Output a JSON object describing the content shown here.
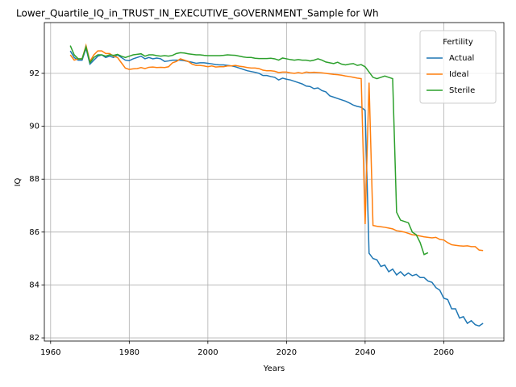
{
  "chart_data": {
    "type": "line",
    "title": "Lower_Quartile_IQ_in_TRUST_IN_EXECUTIVE_GOVERNMENT_Sample for Wh",
    "xlabel": "Years",
    "ylabel": "IQ",
    "legend_title": "Fertility",
    "legend": "upper right",
    "xlim": [
      1958.4,
      2075.3
    ],
    "ylim": [
      81.88,
      93.92
    ],
    "xticks": [
      1960,
      1980,
      2000,
      2020,
      2040,
      2060
    ],
    "yticks": [
      82,
      84,
      86,
      88,
      90,
      92
    ],
    "grid": true,
    "x": [
      1965,
      1966,
      1967,
      1968,
      1969,
      1970,
      1971,
      1972,
      1973,
      1974,
      1975,
      1976,
      1977,
      1978,
      1979,
      1980,
      1981,
      1982,
      1983,
      1984,
      1985,
      1986,
      1987,
      1988,
      1989,
      1990,
      1991,
      1992,
      1993,
      1994,
      1995,
      1996,
      1997,
      1998,
      1999,
      2000,
      2001,
      2002,
      2003,
      2004,
      2005,
      2006,
      2007,
      2008,
      2009,
      2010,
      2011,
      2012,
      2013,
      2014,
      2015,
      2016,
      2017,
      2018,
      2019,
      2020,
      2021,
      2022,
      2023,
      2024,
      2025,
      2026,
      2027,
      2028,
      2029,
      2030,
      2031,
      2032,
      2033,
      2034,
      2035,
      2036,
      2037,
      2038,
      2039,
      2040,
      2041,
      2042,
      2043,
      2044,
      2045,
      2046,
      2047,
      2048,
      2049,
      2050,
      2051,
      2052,
      2053,
      2054,
      2055,
      2056,
      2057,
      2058,
      2059,
      2060,
      2061,
      2062,
      2063,
      2064,
      2065,
      2066,
      2067,
      2068,
      2069,
      2070
    ],
    "series": [
      {
        "name": "Actual",
        "color": "#1f77b4",
        "values": [
          92.85,
          92.6,
          92.5,
          92.5,
          92.95,
          92.35,
          92.5,
          92.65,
          92.7,
          92.6,
          92.65,
          92.6,
          92.7,
          92.6,
          92.5,
          92.48,
          92.55,
          92.6,
          92.65,
          92.55,
          92.6,
          92.55,
          92.58,
          92.55,
          92.45,
          92.47,
          92.5,
          92.5,
          92.5,
          92.48,
          92.45,
          92.42,
          92.38,
          92.4,
          92.4,
          92.38,
          92.36,
          92.33,
          92.32,
          92.32,
          92.3,
          92.28,
          92.25,
          92.2,
          92.15,
          92.1,
          92.07,
          92.04,
          92.0,
          91.92,
          91.92,
          91.88,
          91.85,
          91.75,
          91.82,
          91.78,
          91.75,
          91.7,
          91.65,
          91.6,
          91.52,
          91.5,
          91.42,
          91.45,
          91.35,
          91.3,
          91.15,
          91.1,
          91.05,
          91.0,
          90.95,
          90.88,
          90.8,
          90.75,
          90.72,
          90.6,
          85.2,
          85.0,
          84.95,
          84.7,
          84.75,
          84.5,
          84.6,
          84.38,
          84.5,
          84.35,
          84.45,
          84.35,
          84.4,
          84.28,
          84.28,
          84.15,
          84.1,
          83.9,
          83.8,
          83.5,
          83.45,
          83.1,
          83.1,
          82.75,
          82.8,
          82.55,
          82.65,
          82.5,
          82.45,
          82.55
        ]
      },
      {
        "name": "Ideal",
        "color": "#ff7f0e",
        "values": [
          92.7,
          92.5,
          92.55,
          92.55,
          93.05,
          92.45,
          92.7,
          92.85,
          92.85,
          92.75,
          92.75,
          92.65,
          92.6,
          92.4,
          92.2,
          92.15,
          92.17,
          92.18,
          92.22,
          92.18,
          92.23,
          92.24,
          92.22,
          92.23,
          92.22,
          92.25,
          92.4,
          92.45,
          92.55,
          92.5,
          92.45,
          92.35,
          92.3,
          92.3,
          92.28,
          92.25,
          92.28,
          92.24,
          92.25,
          92.25,
          92.28,
          92.28,
          92.3,
          92.27,
          92.25,
          92.22,
          92.2,
          92.2,
          92.18,
          92.12,
          92.1,
          92.1,
          92.08,
          92.03,
          92.05,
          92.05,
          92.02,
          92.0,
          92.03,
          92.0,
          92.05,
          92.03,
          92.04,
          92.03,
          92.02,
          92.0,
          91.98,
          91.96,
          91.95,
          91.93,
          91.9,
          91.88,
          91.85,
          91.82,
          91.8,
          86.3,
          91.65,
          86.25,
          86.22,
          86.2,
          86.18,
          86.15,
          86.12,
          86.05,
          86.03,
          86.0,
          85.95,
          85.9,
          85.88,
          85.85,
          85.82,
          85.8,
          85.78,
          85.8,
          85.72,
          85.7,
          85.6,
          85.52,
          85.5,
          85.48,
          85.47,
          85.48,
          85.45,
          85.45,
          85.32,
          85.3
        ]
      },
      {
        "name": "Sterile",
        "color": "#2ca02c",
        "values": [
          93.05,
          92.7,
          92.55,
          92.55,
          93.0,
          92.4,
          92.6,
          92.7,
          92.7,
          92.65,
          92.7,
          92.68,
          92.72,
          92.65,
          92.6,
          92.65,
          92.7,
          92.72,
          92.74,
          92.65,
          92.7,
          92.7,
          92.67,
          92.65,
          92.67,
          92.65,
          92.68,
          92.75,
          92.78,
          92.77,
          92.74,
          92.72,
          92.7,
          92.7,
          92.68,
          92.67,
          92.67,
          92.67,
          92.67,
          92.68,
          92.7,
          92.69,
          92.68,
          92.65,
          92.62,
          92.6,
          92.6,
          92.57,
          92.56,
          92.56,
          92.56,
          92.57,
          92.55,
          92.5,
          92.58,
          92.55,
          92.52,
          92.5,
          92.52,
          92.5,
          92.5,
          92.47,
          92.5,
          92.55,
          92.5,
          92.43,
          92.4,
          92.37,
          92.42,
          92.35,
          92.32,
          92.35,
          92.37,
          92.3,
          92.33,
          92.25,
          92.05,
          91.85,
          91.8,
          91.85,
          91.9,
          91.85,
          91.8,
          86.75,
          86.45,
          86.4,
          86.35,
          86.0,
          85.9,
          85.6,
          85.15,
          85.22,
          null,
          null,
          null,
          null,
          null,
          null,
          null,
          null,
          null,
          null,
          null,
          null,
          null,
          null
        ]
      }
    ]
  }
}
